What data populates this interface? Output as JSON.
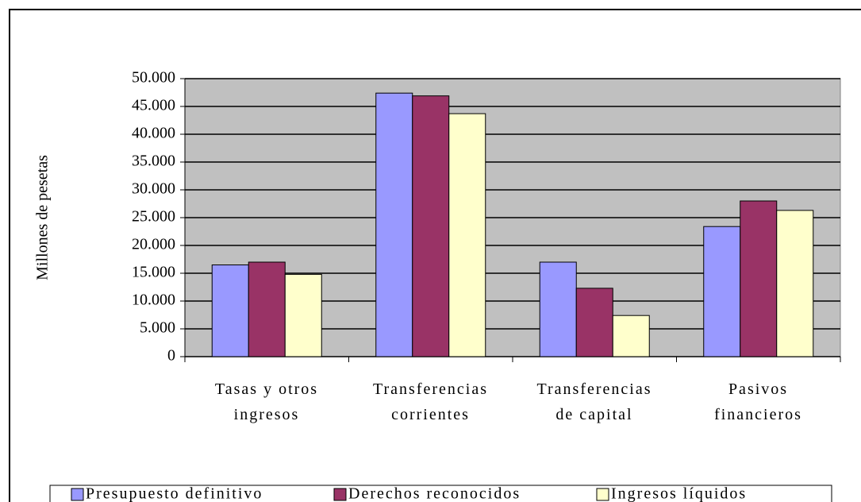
{
  "chart_data": {
    "type": "bar",
    "y_label": "Millones de pesetas",
    "categories": [
      "Tasas y otros\ningresos",
      "Transferencias\ncorrientes",
      "Transferencias\nde capital",
      "Pasivos\nfinancieros"
    ],
    "series": [
      {
        "name": "Presupuesto definitivo",
        "color": "#9999ff",
        "values": [
          16500,
          47400,
          17000,
          23400
        ]
      },
      {
        "name": "Derechos reconocidos",
        "color": "#993366",
        "values": [
          17000,
          46900,
          12300,
          28000
        ]
      },
      {
        "name": "Ingresos líquidos",
        "color": "#ffffcc",
        "values": [
          14800,
          43700,
          7400,
          26300
        ]
      }
    ],
    "ylim": [
      0,
      50000
    ],
    "yticks": [
      0,
      {
        "value": 5000,
        "label": "5.000"
      },
      {
        "value": 10000,
        "label": "10.000"
      },
      {
        "value": 15000,
        "label": "15.000"
      },
      {
        "value": 20000,
        "label": "20.000"
      },
      {
        "value": 25000,
        "label": "25.000"
      },
      {
        "value": 30000,
        "label": "30.000"
      },
      {
        "value": 35000,
        "label": "35.000"
      },
      {
        "value": 40000,
        "label": "40.000"
      },
      {
        "value": 45000,
        "label": "45.000"
      },
      {
        "value": 50000,
        "label": "50.000"
      }
    ],
    "grid": true,
    "plot_background": "#c0c0c0",
    "legend": "bottom"
  }
}
